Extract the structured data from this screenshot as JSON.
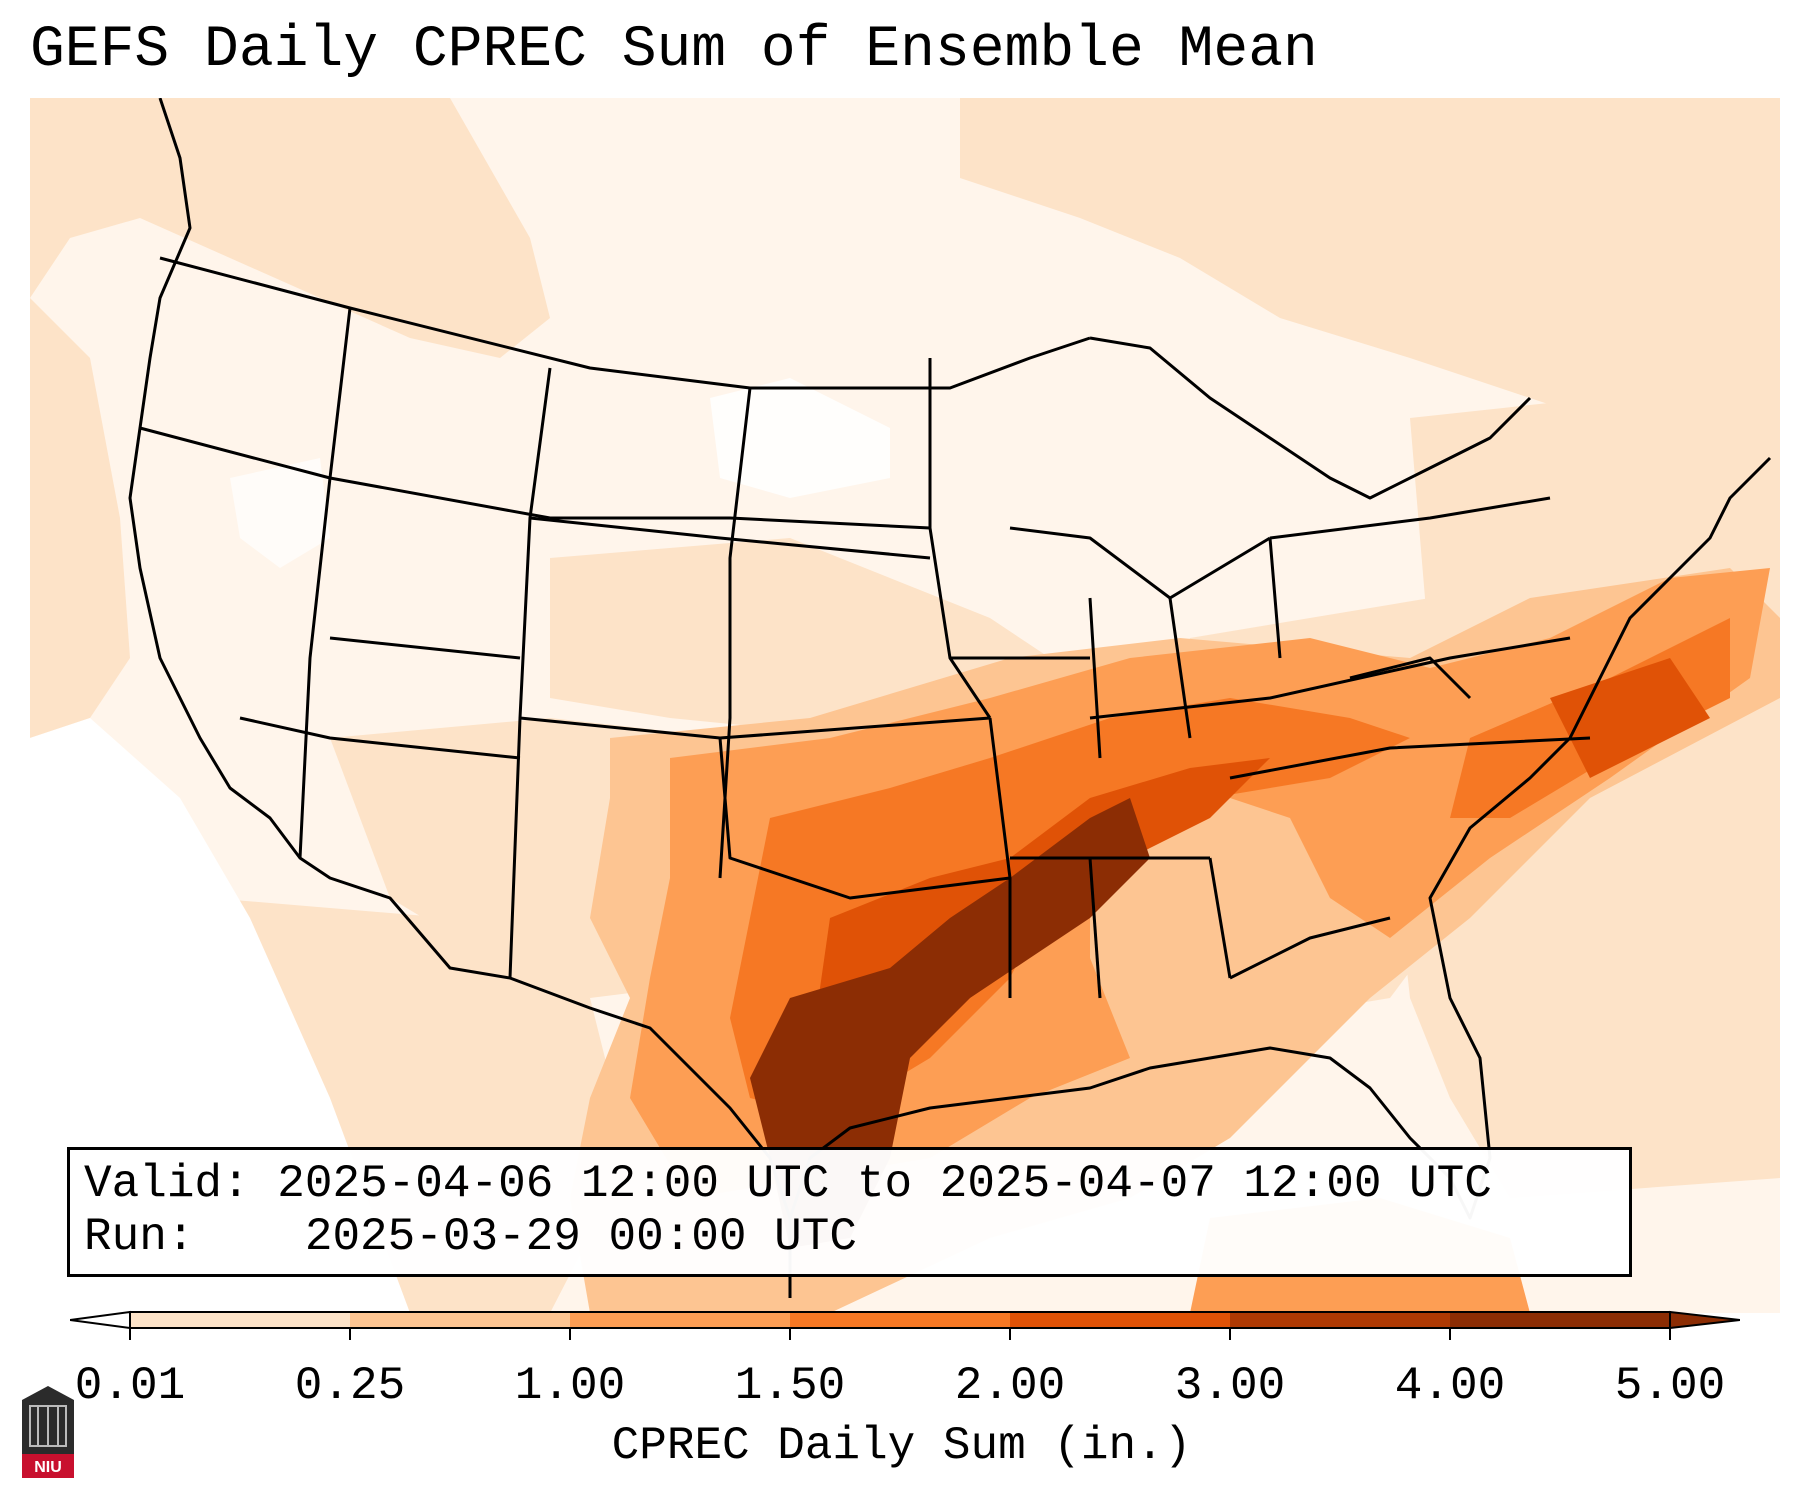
{
  "title": "GEFS Daily CPREC Sum of Ensemble Mean",
  "info": {
    "valid_label": "Valid:",
    "valid_value": "2025-04-06 12:00 UTC to 2025-04-07 12:00 UTC",
    "run_label": "Run:",
    "run_value": "2025-03-29 00:00 UTC"
  },
  "colorbar": {
    "ticks": [
      "0.01",
      "0.25",
      "1.00",
      "1.50",
      "2.00",
      "3.00",
      "4.00",
      "5.00"
    ],
    "label": "CPREC Daily Sum (in.)",
    "colors": [
      "#fff5eb",
      "#fde3c8",
      "#fdc592",
      "#fd9e54",
      "#f67824",
      "#e05206",
      "#ae3903",
      "#8c2d04"
    ]
  },
  "logo": {
    "text": "NIU"
  },
  "map": {
    "region": "Contiguous United States",
    "precip_colors": {
      "none": "#ffffff",
      "trace": "#fff5eb",
      "light": "#fde3c8",
      "moderate": "#fdc592",
      "heavy": "#fd9e54",
      "very_heavy": "#f67824",
      "extreme": "#e05206",
      "max": "#8c2d04"
    }
  }
}
